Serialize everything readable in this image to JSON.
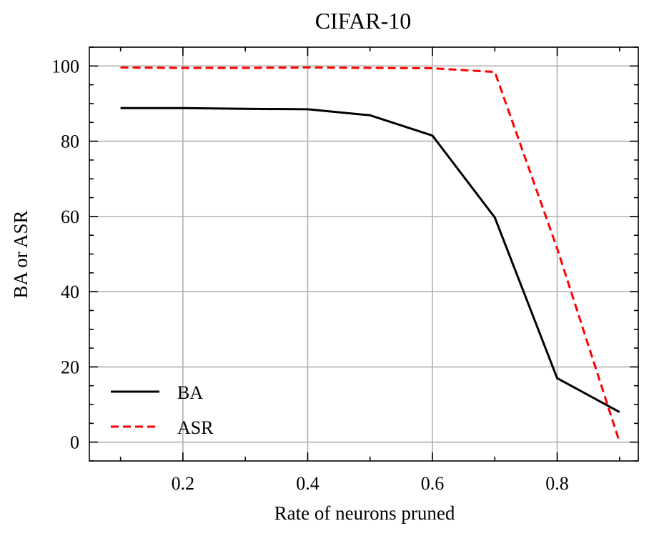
{
  "chart_data": {
    "type": "line",
    "title": "CIFAR-10",
    "xlabel": "Rate of neurons pruned",
    "ylabel": "BA or ASR",
    "x": [
      0.1,
      0.2,
      0.3,
      0.4,
      0.5,
      0.6,
      0.7,
      0.8,
      0.9
    ],
    "xlim": [
      0.05,
      0.93
    ],
    "ylim": [
      -5,
      105
    ],
    "xticks": [
      0.2,
      0.4,
      0.6,
      0.8
    ],
    "xtick_labels": [
      "0.2",
      "0.4",
      "0.6",
      "0.8"
    ],
    "yticks": [
      0,
      20,
      40,
      60,
      80,
      100
    ],
    "ytick_labels": [
      "0",
      "20",
      "40",
      "60",
      "80",
      "100"
    ],
    "grid": true,
    "legend_position": "lower-left",
    "series": [
      {
        "name": "BA",
        "color": "#000000",
        "dash": "solid",
        "values": [
          88.8,
          88.8,
          88.6,
          88.5,
          86.9,
          81.5,
          59.7,
          17.0,
          8.0
        ]
      },
      {
        "name": "ASR",
        "color": "#ff0000",
        "dash": "dashed",
        "values": [
          99.6,
          99.5,
          99.5,
          99.6,
          99.5,
          99.4,
          98.4,
          51.5,
          0.0
        ]
      }
    ]
  }
}
